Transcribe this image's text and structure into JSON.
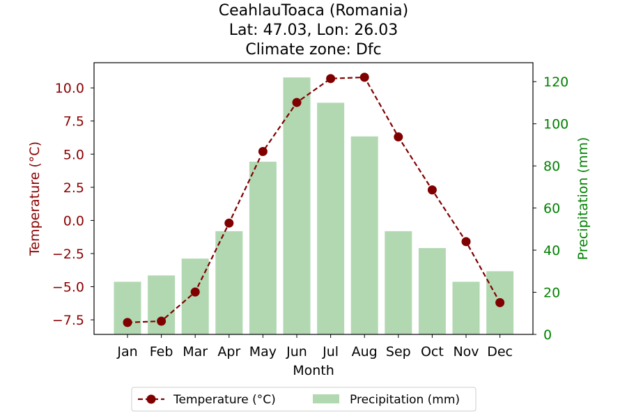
{
  "chart_data": {
    "type": "bar",
    "title_lines": [
      "CeahlauToaca (Romania)",
      "Lat: 47.03, Lon: 26.03",
      "Climate zone: Dfc"
    ],
    "xlabel": "Month",
    "ylabel_left": "Temperature (°C)",
    "ylabel_right": "Precipitation (mm)",
    "categories": [
      "Jan",
      "Feb",
      "Mar",
      "Apr",
      "May",
      "Jun",
      "Jul",
      "Aug",
      "Sep",
      "Oct",
      "Nov",
      "Dec"
    ],
    "series": [
      {
        "name": "Temperature (°C)",
        "type": "line",
        "axis": "left",
        "color": "#800000",
        "values": [
          -7.7,
          -7.6,
          -5.4,
          -0.2,
          5.2,
          8.9,
          10.7,
          10.8,
          6.3,
          2.3,
          -1.6,
          -6.2
        ]
      },
      {
        "name": "Precipitation (mm)",
        "type": "bar",
        "axis": "right",
        "color": "#b2d8b2",
        "values": [
          25,
          28,
          36,
          49,
          82,
          122,
          110,
          94,
          49,
          41,
          25,
          30
        ]
      }
    ],
    "ylim_left": [
      -8.6,
      11.9
    ],
    "ylim_right": [
      0,
      129
    ],
    "yticks_left": [
      -7.5,
      -5.0,
      -2.5,
      0.0,
      2.5,
      5.0,
      7.5,
      10.0
    ],
    "yticks_left_labels": [
      "−7.5",
      "−5.0",
      "−2.5",
      "0.0",
      "2.5",
      "5.0",
      "7.5",
      "10.0"
    ],
    "yticks_right": [
      0,
      20,
      40,
      60,
      80,
      100,
      120
    ],
    "yticks_right_labels": [
      "0",
      "20",
      "40",
      "60",
      "80",
      "100",
      "120"
    ],
    "left_axis_color": "#8b0000",
    "right_axis_color": "#008000",
    "grid": false,
    "legend_placement": "bottom-center"
  }
}
